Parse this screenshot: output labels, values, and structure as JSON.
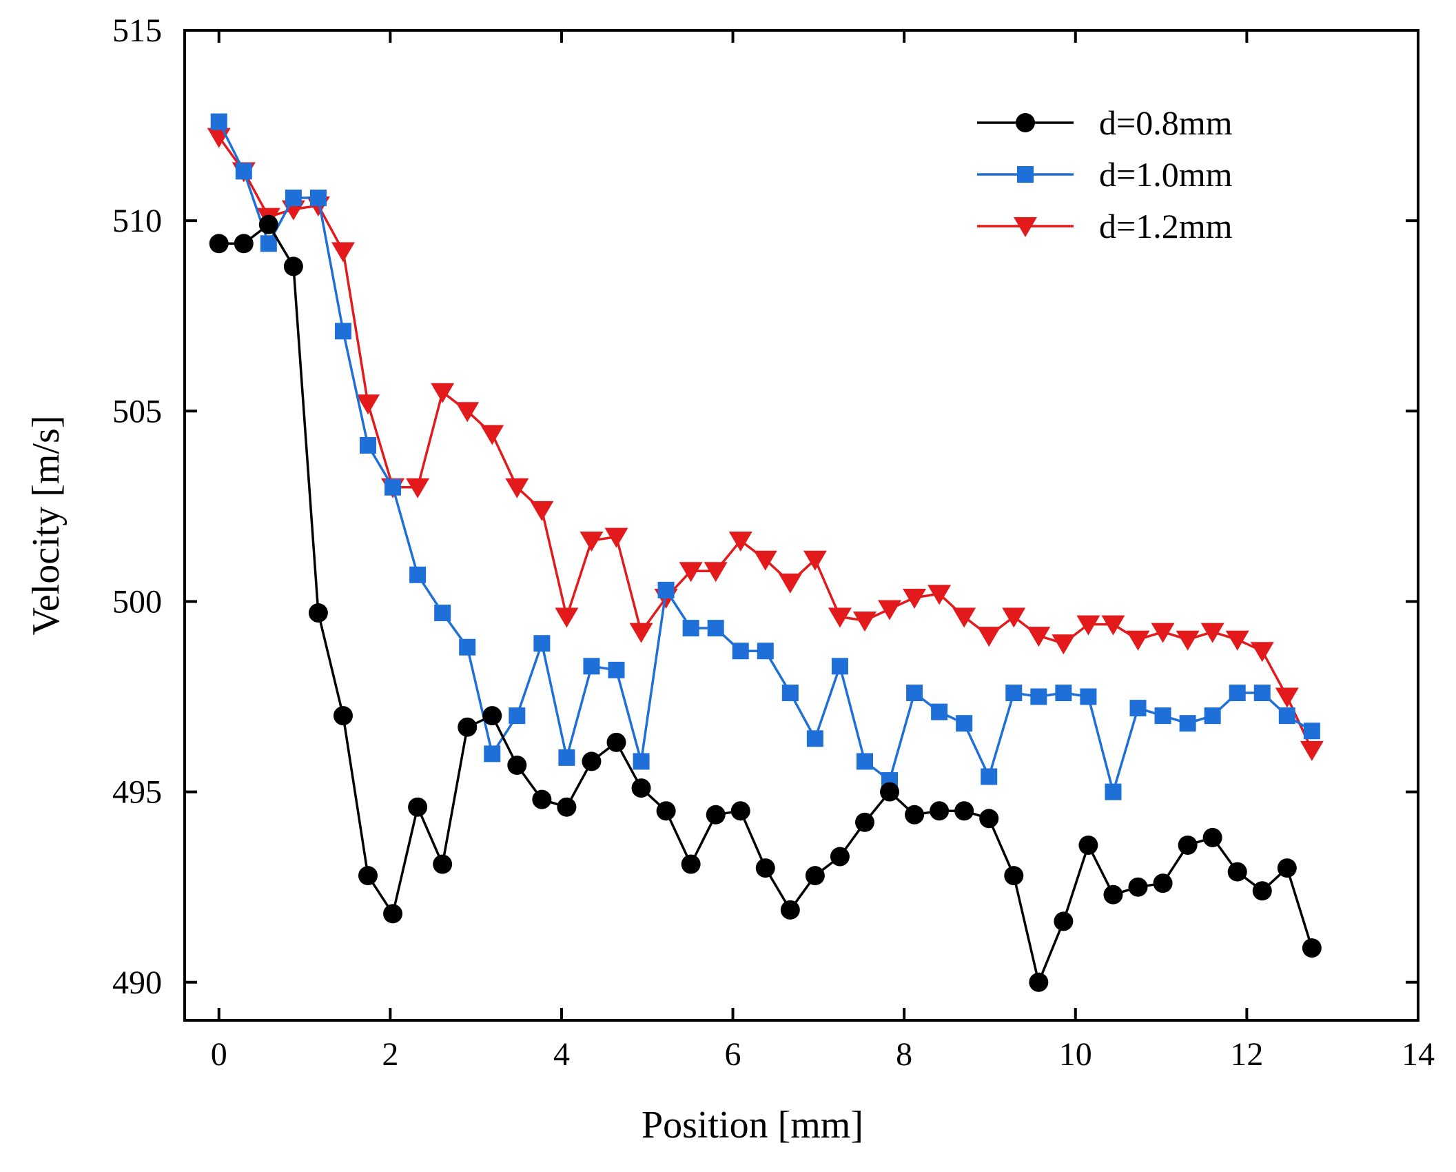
{
  "chart_data": {
    "type": "line",
    "title": "",
    "xlabel": "Position [mm]",
    "ylabel": "Velocity [m/s]",
    "xlim": [
      -0.4,
      14
    ],
    "ylim": [
      489,
      515
    ],
    "xticks": [
      0,
      2,
      4,
      6,
      8,
      10,
      12,
      14
    ],
    "yticks": [
      490,
      495,
      500,
      505,
      510,
      515
    ],
    "grid": false,
    "legend_position": "top-right",
    "x": [
      0,
      0.29,
      0.58,
      0.87,
      1.16,
      1.45,
      1.74,
      2.03,
      2.32,
      2.61,
      2.9,
      3.19,
      3.48,
      3.77,
      4.06,
      4.35,
      4.64,
      4.93,
      5.22,
      5.51,
      5.8,
      6.09,
      6.38,
      6.67,
      6.96,
      7.25,
      7.54,
      7.83,
      8.12,
      8.41,
      8.7,
      8.99,
      9.28,
      9.57,
      9.86,
      10.15,
      10.44,
      10.73,
      11.02,
      11.31,
      11.6,
      11.89,
      12.18,
      12.47
    ],
    "series": [
      {
        "name": "d=0.8mm",
        "color": "#000000",
        "marker": "circle",
        "values": [
          509.4,
          509.4,
          509.9,
          508.8,
          499.7,
          497.0,
          492.8,
          491.8,
          494.6,
          493.1,
          496.7,
          497.0,
          495.7,
          494.8,
          494.6,
          495.8,
          496.3,
          495.1,
          494.5,
          493.1,
          494.4,
          494.5,
          493.0,
          491.9,
          492.8,
          493.3,
          494.2,
          495.0,
          494.4,
          494.5,
          494.5,
          494.3,
          492.8,
          490.0,
          491.6,
          493.6,
          492.3,
          492.5,
          492.6,
          493.6,
          493.8,
          492.9,
          492.4,
          493.0
        ]
      },
      {
        "name": "d=1.0mm",
        "color": "#1f6fd8",
        "marker": "square",
        "values": [
          512.6,
          511.3,
          509.4,
          510.6,
          510.6,
          507.1,
          504.1,
          503.0,
          500.7,
          499.7,
          498.8,
          496.0,
          497.0,
          498.9,
          495.9,
          498.3,
          498.2,
          495.8,
          500.3,
          499.3,
          499.3,
          498.7,
          498.7,
          497.6,
          496.4,
          498.3,
          495.8,
          495.3,
          497.6,
          497.1,
          496.8,
          495.4,
          497.6,
          497.5,
          497.6,
          497.5,
          495.0,
          497.2,
          497.0,
          496.8,
          497.0,
          497.6,
          497.6,
          497.0
        ]
      },
      {
        "name": "d=1.2mm",
        "color": "#e31a1c",
        "marker": "triangle-down",
        "values": [
          512.2,
          511.3,
          510.1,
          510.3,
          510.4,
          509.2,
          505.2,
          503.0,
          503.0,
          505.5,
          505.0,
          504.4,
          503.0,
          502.4,
          499.6,
          501.6,
          501.7,
          499.2,
          500.1,
          500.8,
          500.8,
          501.6,
          501.1,
          500.5,
          501.1,
          499.6,
          499.5,
          499.8,
          500.1,
          500.2,
          499.6,
          499.1,
          499.6,
          499.1,
          498.9,
          499.4,
          499.4,
          499.0,
          499.2,
          499.0,
          499.2,
          499.0,
          498.7,
          497.5
        ]
      }
    ],
    "tail_point": {
      "x": 12.76,
      "values": [
        490.9,
        496.6,
        496.1
      ]
    }
  }
}
